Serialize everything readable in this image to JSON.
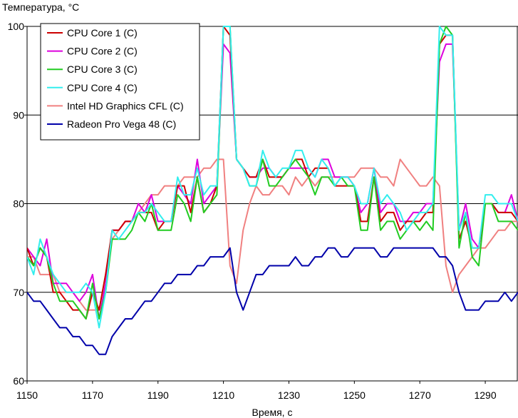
{
  "chart_data": {
    "type": "line",
    "ylabel": "Температура, °C",
    "xlabel": "Время, с",
    "xlim": [
      1150,
      1300
    ],
    "ylim": [
      60,
      100
    ],
    "xticks": [
      "1150",
      "1170",
      "1190",
      "1210",
      "1230",
      "1250",
      "1270",
      "1290"
    ],
    "yticks": [
      "60",
      "70",
      "80",
      "90",
      "100"
    ],
    "grid": "horizontal",
    "legend_position": "top-left",
    "x": [
      1150,
      1152,
      1154,
      1156,
      1158,
      1160,
      1162,
      1164,
      1166,
      1168,
      1170,
      1172,
      1174,
      1176,
      1178,
      1180,
      1182,
      1184,
      1186,
      1188,
      1190,
      1192,
      1194,
      1196,
      1198,
      1200,
      1202,
      1204,
      1206,
      1208,
      1210,
      1212,
      1214,
      1216,
      1218,
      1220,
      1222,
      1224,
      1226,
      1228,
      1230,
      1232,
      1234,
      1236,
      1238,
      1240,
      1242,
      1244,
      1246,
      1248,
      1250,
      1252,
      1254,
      1256,
      1258,
      1260,
      1262,
      1264,
      1266,
      1268,
      1270,
      1272,
      1274,
      1276,
      1278,
      1280,
      1282,
      1284,
      1286,
      1288,
      1290,
      1292,
      1294,
      1296,
      1298,
      1300
    ],
    "series": [
      {
        "name": "CPU Core 1 (C)",
        "color": "#cc0000",
        "values": [
          75,
          73,
          75,
          74,
          70,
          70,
          69,
          68,
          68,
          67,
          70,
          68,
          72,
          77,
          77,
          78,
          78,
          79,
          79,
          79,
          77,
          78,
          78,
          82,
          82,
          79,
          83,
          79,
          80,
          82,
          100,
          99,
          85,
          84,
          83,
          83,
          85,
          83,
          83,
          83,
          84,
          85,
          85,
          83,
          84,
          84,
          84,
          82,
          82,
          82,
          82,
          78,
          78,
          83,
          78,
          79,
          79,
          77,
          78,
          78,
          78,
          79,
          79,
          98,
          99,
          99,
          76,
          78,
          75,
          75,
          80,
          80,
          79,
          79,
          79,
          78
        ]
      },
      {
        "name": "CPU Core 2 (C)",
        "color": "#dd00dd",
        "values": [
          75,
          74,
          73,
          76,
          71,
          71,
          71,
          70,
          69,
          70,
          72,
          67,
          71,
          77,
          77,
          78,
          78,
          80,
          79,
          81,
          78,
          78,
          78,
          82,
          81,
          80,
          85,
          80,
          81,
          82,
          98,
          97,
          85,
          84,
          83,
          83,
          84,
          84,
          83,
          83,
          84,
          84,
          84,
          84,
          83,
          85,
          85,
          83,
          83,
          83,
          82,
          79,
          80,
          84,
          79,
          80,
          80,
          78,
          78,
          79,
          79,
          80,
          80,
          96,
          98,
          98,
          77,
          80,
          76,
          75,
          80,
          80,
          79,
          79,
          81,
          78
        ]
      },
      {
        "name": "CPU Core 3 (C)",
        "color": "#22cc22",
        "values": [
          74,
          73,
          75,
          74,
          71,
          69,
          69,
          69,
          68,
          67,
          71,
          67,
          70,
          76,
          76,
          76,
          77,
          79,
          78,
          80,
          77,
          77,
          77,
          81,
          80,
          78,
          83,
          79,
          80,
          81,
          100,
          100,
          85,
          84,
          82,
          82,
          85,
          82,
          82,
          83,
          84,
          85,
          84,
          83,
          81,
          83,
          83,
          82,
          83,
          82,
          82,
          77,
          77,
          83,
          77,
          78,
          78,
          76,
          77,
          78,
          77,
          78,
          77,
          98,
          100,
          99,
          75,
          79,
          74,
          73,
          80,
          80,
          78,
          78,
          78,
          77
        ]
      },
      {
        "name": "CPU Core 4 (C)",
        "color": "#33eeee",
        "values": [
          74,
          72,
          76,
          74,
          72,
          71,
          70,
          70,
          70,
          71,
          70,
          66,
          70,
          77,
          76,
          77,
          78,
          79,
          79,
          80,
          79,
          78,
          78,
          83,
          81,
          81,
          84,
          81,
          82,
          82,
          100,
          100,
          85,
          84,
          82,
          82,
          86,
          84,
          83,
          84,
          84,
          86,
          86,
          84,
          83,
          85,
          84,
          82,
          83,
          83,
          82,
          80,
          80,
          84,
          80,
          81,
          80,
          79,
          77,
          78,
          79,
          79,
          80,
          100,
          99,
          99,
          77,
          79,
          75,
          75,
          81,
          81,
          80,
          80,
          80,
          78
        ]
      },
      {
        "name": "Intel HD Graphics CFL (C)",
        "color": "#f08080",
        "values": [
          74,
          74,
          72,
          72,
          72,
          70,
          70,
          70,
          69,
          68,
          68,
          68,
          72,
          76,
          77,
          78,
          78,
          79,
          80,
          81,
          81,
          82,
          82,
          82,
          83,
          83,
          83,
          84,
          84,
          85,
          85,
          73,
          71,
          77,
          80,
          82,
          81,
          81,
          82,
          82,
          81,
          83,
          82,
          83,
          82,
          83,
          83,
          83,
          83,
          83,
          83,
          84,
          84,
          84,
          83,
          83,
          82,
          85,
          84,
          83,
          82,
          82,
          83,
          82,
          73,
          70,
          72,
          73,
          74,
          75,
          75,
          76,
          77,
          77,
          78,
          78
        ]
      },
      {
        "name": "Radeon Pro Vega 48 (C)",
        "color": "#0000aa",
        "values": [
          70,
          69,
          69,
          68,
          67,
          66,
          66,
          65,
          65,
          64,
          64,
          63,
          63,
          65,
          66,
          67,
          67,
          68,
          69,
          69,
          70,
          71,
          71,
          72,
          72,
          72,
          73,
          73,
          74,
          74,
          74,
          75,
          70,
          68,
          70,
          72,
          72,
          73,
          73,
          73,
          73,
          74,
          73,
          73,
          74,
          74,
          75,
          75,
          74,
          74,
          75,
          75,
          75,
          75,
          74,
          74,
          75,
          75,
          75,
          75,
          75,
          75,
          75,
          74,
          74,
          73,
          70,
          68,
          68,
          68,
          69,
          69,
          69,
          70,
          69,
          70
        ]
      }
    ]
  }
}
